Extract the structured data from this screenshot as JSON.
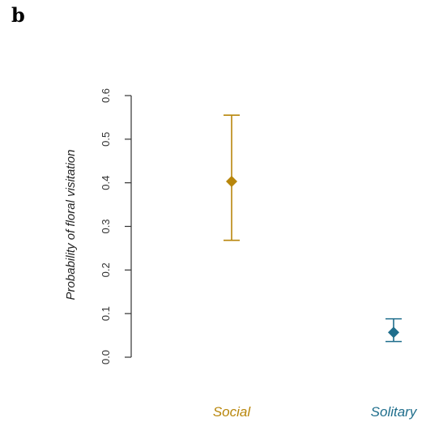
{
  "panel_label": "b",
  "chart_data": {
    "type": "scatter",
    "title": "",
    "ylabel": "Probability of floral visitation",
    "xlabel": "",
    "ylim": [
      0,
      0.6
    ],
    "yticks": [
      "0.0",
      "0.1",
      "0.2",
      "0.3",
      "0.4",
      "0.5",
      "0.6"
    ],
    "categories": [
      "Social",
      "Solitary"
    ],
    "points": [
      {
        "category": "Social",
        "estimate": 0.403,
        "lower": 0.268,
        "upper": 0.555,
        "color": "#b8860b"
      },
      {
        "category": "Solitary",
        "estimate": 0.057,
        "lower": 0.036,
        "upper": 0.088,
        "color": "#1f6e8c"
      }
    ],
    "grid": false,
    "legend": "none"
  }
}
